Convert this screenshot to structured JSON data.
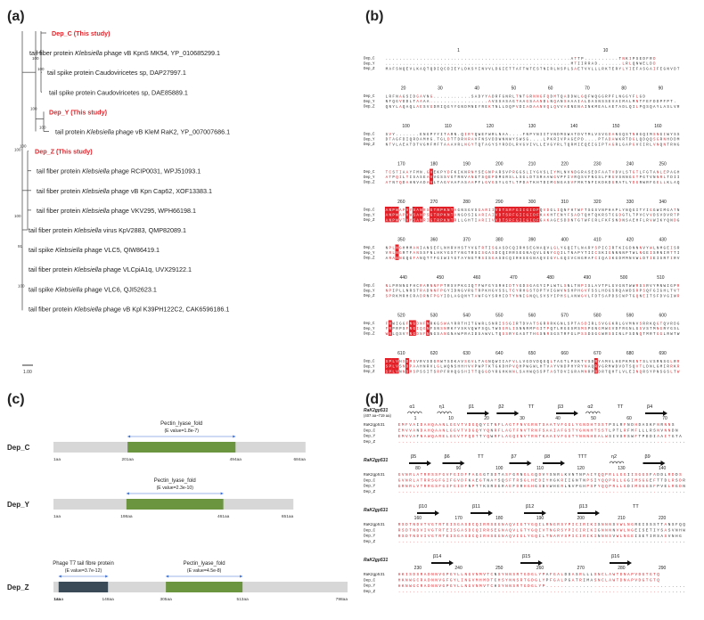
{
  "panels": {
    "a": "(a)",
    "b": "(b)",
    "c": "(c)",
    "d": "(d)"
  },
  "tree": {
    "leaves": [
      {
        "pre": "Dep_C (This study)",
        "ital": "",
        "post": "",
        "red": true
      },
      {
        "pre": "tail fiber protein ",
        "ital": "Klebsiella",
        "post": " phage vB KpnS MK54, YP_010685299.1",
        "red": false
      },
      {
        "pre": "tail spike protein Caudoviricetes sp, DAP27997.1",
        "ital": "",
        "post": "",
        "red": false
      },
      {
        "pre": "tail spike protein Caudoviricetes sp, DAE85889.1",
        "ital": "",
        "post": "",
        "red": false
      },
      {
        "pre": "Dep_Y (This study)",
        "ital": "",
        "post": "",
        "red": true
      },
      {
        "pre": "tail protein ",
        "ital": "Klebsiella",
        "post": " phage vB KleM RaK2, YP_007007686.1",
        "red": false
      },
      {
        "pre": "Dep_Z (This study)",
        "ital": "",
        "post": "",
        "red": true
      },
      {
        "pre": "tail fiber protein ",
        "ital": "Klebsiella",
        "post": " phage RCIP0031, WPJ51093.1",
        "red": false
      },
      {
        "pre": "tail fiber protein ",
        "ital": "Klebsiella",
        "post": " phage vB Kpn Cap62, XOF13383.1",
        "red": false
      },
      {
        "pre": "tail fiber protein ",
        "ital": "Klebsiella",
        "post": " phage VKV295, WPH66198.1",
        "red": false
      },
      {
        "pre": "tail fiber protein ",
        "ital": "Klebsiella",
        "post": " virus KpV2883, QMP82089.1",
        "red": false
      },
      {
        "pre": "tail spike ",
        "ital": "Klebsiella",
        "post": " phage VLC5, QIW86419.1",
        "red": false
      },
      {
        "pre": "tail fiber protein ",
        "ital": "Klebsiella",
        "post": " phage VLCpiA1q, UVX29122.1",
        "red": false
      },
      {
        "pre": "tail spike ",
        "ital": "Klebsiella",
        "post": " phage VLC6, QJI52623.1",
        "red": false
      },
      {
        "pre": "tail fiber protein ",
        "ital": "Klebsiella",
        "post": " phage vB Kpl K39PH122C2, CAK6596186.1",
        "red": false
      }
    ],
    "bootstrap": [
      "100",
      "100",
      "100",
      "100",
      "100",
      "100",
      "91",
      "100",
      "100"
    ],
    "scale_label": "1.00"
  },
  "alignment_b": {
    "seq_names": [
      "Dep_C",
      "Dep_Y",
      "Dep_Z"
    ],
    "rows": [
      {
        "ticks": [
          "1",
          "10"
        ],
        "seqs": [
          "......................................................ATTP..........TNKIPSEDFRD",
          "......................................................MTIIRRAD.......LRLQNWELDD",
          "MAFSNQEVLKAQTQDIQCDIEYLDKSYINVVLDGIETTAFTWTESTNIRLNSPLSAETVVLLLRKTERYLYIEFASGAIFEGNVDT"
        ]
      },
      {
        "ticks": [
          "20",
          "30",
          "40",
          "50",
          "60",
          "70",
          "80",
          "90"
        ],
        "seqs": [
          "LRFNAGSIDGAVNG...........SADYYADRFGNRLTNTGRNNGFQDMTQADDWLGQFWQGGRPFLNGGYFLGD",
          "NFQGVDDLTAAAA.................AVSSASAGTAAGSAANDLNQANSAAAIALDASNSSEVAIMALMNTFEFDDPFPT.",
          "QNYLAQAQLAESVGDRIQGYYGNDMNEYREKTNLLDQPVDIADAANVQLQVVAENENAINKMEALAETADLQILPQSQAYLASLVRNH"
        ]
      },
      {
        "ticks": [
          "100",
          "110",
          "120",
          "130",
          "140",
          "150",
          "160"
        ],
        "seqs": [
          "SVY.......ENGPYYITARN.QIRYQWEFWRLNAA....FNPYNIITVNDMSWATDVTMLVSVGDANGQSTNHGQIMSNGIWYSSGTIALA",
          "DTAGFDIQRDAMHG.TGLDTTDRNRAVFNSVDDWNNWYSWSG....LPKRIVPAGEPD....PTADAWKRTDGLQDQQSGRNHDDMFYGGTFR",
          "NTVLAEATDTVGMFMFTAAAVRLNGYTQTAGYSYRDDLRVGVIVLLEVGYRLTQRMIEQEIGIPTAGRLGAPGVCIRLVNQNTRNGQIRHLAS"
        ]
      },
      {
        "ticks": [
          "170",
          "180",
          "190",
          "200",
          "210",
          "220",
          "230",
          "240",
          "250"
        ],
        "seqs": [
          "TCSTIAAYFMN.GVEKPYDFKIKNRNYSEGNPARSVPRGGSLIYGVSLIYMLNVNDGRASEDFAATVDVLSTGTLFGTANLEPAGHWLLSI",
          "ATPQILTISASEAVVGSSVGTRNVANGTSQEPDMGRSLLSGLDTSRAAWGVPFIVRQSVFNGSLFRGVSNNGGTPGTVNNRLTDIISVLLNG",
          "ATNTQDAHNVADAVLTAGVAAFASAAPFLGVGSYLGTLTPDATKHTDIMGNGASVFMKTNFIKDKDGRATLYDGRWRFGELLKLAQAIRS"
        ]
      },
      {
        "ticks": [
          "260",
          "270",
          "280",
          "290",
          "300",
          "310",
          "320",
          "330",
          "340"
        ],
        "seqs": [
          "ANPWAPVYSANRSGTRPKNTAGNSGVSGARIIVDTSRFGIIGIDFQVDGLIQNFHTWFTSGSVNPHAPLYNQGITYIGGWIMGATNHAGANI",
          "ANPWAPVWSANPSGTRPKNTANGDSIGARIAIVDTSRFGIIGIDFKAKHTENYFSADTQHTQKRSTCGDGTLTPVCVVDSVDVRTPYAKNAT",
          "ANPWVTVYSANRIGTRPKNTRLLGHTIARIIVVDTSRFGIIGIDFGAKAGESDDNTGTWFCRLFKFSNDNSAEHFLRVWIKYQNDGDLSAIT"
        ]
      },
      {
        "ticks": [
          "350",
          "360",
          "370",
          "380",
          "390",
          "400",
          "410",
          "420",
          "430"
        ],
        "seqs": [
          "NPLNGHMMANIANSEFLNHRVHSTYVGTRTISGASDCQIRHSEGNAQVLGLYGQITLNARYSPICIRTKIGDNNNVYWLNMGEISRTIRIAISNE",
          "VRLNGRTFANSSFNLHKYGSTYNGTRSISGASDCQIRRSEGNAQVLGNYGQILTNAPYTIICSKIGNNNNPTWLNGEISRNIRTTIHGSN",
          "ARANNGQGFANQTTFGIWIYGTAYNGTRSISGASDCQIRHSEGNAQVIGYLGQIVCNGRAFCIQAIKGDMMNVWLDTIEISRTIRVAISDRT"
        ]
      },
      {
        "ticks": [
          "440",
          "450",
          "460",
          "470",
          "480",
          "490",
          "500",
          "510"
        ],
        "seqs": [
          "NLPRNNGFHCRARNNFPTRSVPKGIQTFWFGYSRHIDTYGDSGAGYIPLWTLSNLTNPISLAVTPLGVGNTWWRSSRVYMNWIGPRLSY",
          "NPIPLLNRSTRADNNFPGYIDNGVRGTRPKHGVSSLTCYRHGSTDPTVIGWVNSHPHGVFSSLHDGSRQAWDSRPSQFGIGHLTVTRMPDQQ",
          "SPRKMRHCRADRNFPGYIDLAGQNYTAWFGYSRHIDTYNNIGNQLSVSYIPHSLANWGVLFDTSAPDSCWPTGQNEITSFDVGIWRKTHDNL"
        ]
      },
      {
        "ticks": [
          "520",
          "530",
          "540",
          "550",
          "560",
          "570",
          "580",
          "590",
          "600"
        ],
        "seqs": [
          "FRWIGGFNGDNFNRKGSWAYRRTHITGWRLSNRISSGIRTDVATSGRRRKGNLSPTASDIRLSVGGKRLGVMNVSRRKQGTQVRDGNTLTQS",
          "FRPRPSFNGIQGNFSNSNRKYVSKVQWFSQLTWSGRLISNNRMPGITPQTLRGGSMSMSPGNGMWGVDFRGNLGSVSTMNGRYGSLIGKPTG",
          "WRLQSVYNGDNFNNGSANGNAWPRAIDSAWVLTQSSRYGASTTHGSNRSGSTRFGLPSSDSGGWRSSINLFSDNQTMRTGGLRWTWFGLSG"
        ]
      },
      {
        "ticks": [
          "610",
          "620",
          "630",
          "640",
          "650",
          "660",
          "670",
          "680",
          "690"
        ],
        "seqs": [
          "SPLVHSDMSVRVSDGRWTSDKAVSGVLTAGNQWIIAFVLLVGDVDQGQLTAGTLPSKTVSDRYAMVLHEPKMGNTSLVSRNSGLRRTYIL",
          "SPLVSNDPAAHNRVLGLWQNSHHHVVPWPTKTGKDHPVQHPWGWLHTVAYVNDPHYRYNAQRVGRMWDVDTSQVTLDNLGMIRRKRVLIKPA",
          "SPLVNNDMSPSSITSRPFRHQGSHITTQGGDYRGHKNNLSAHWQSSPTASTDVIGRAMNRPRDRTQHTLVLEINQRSYPNSGSLTWGNTVTPQ"
        ]
      }
    ]
  },
  "domains_c": {
    "rows": [
      {
        "name": "Dep_C",
        "total": "684aa",
        "domains": [
          {
            "label": "Pectin_lyase_fold",
            "evalue": "(E value=1.8e-7)",
            "start": 201,
            "end": 494,
            "start_label": "201aa",
            "end_label": "494aa",
            "color": "#6c9540"
          }
        ],
        "length": 684
      },
      {
        "name": "Dep_Y",
        "total": "651aa",
        "domains": [
          {
            "label": "Pectin_lyase_fold",
            "evalue": "(E value=2.3e-10)",
            "start": 198,
            "end": 461,
            "start_label": "198aa",
            "end_label": "461aa",
            "color": "#6c9540"
          }
        ],
        "length": 651
      },
      {
        "name": "Dep_Z",
        "total": "798aa",
        "domains": [
          {
            "label": "Phage T7 tail fibre protein",
            "evalue": "(E value=3.7e-12)",
            "start": 14,
            "end": 148,
            "start_label": "14aa",
            "end_label": "148aa",
            "color": "#3a4a57"
          },
          {
            "label": "Pectin_lyase_fold",
            "evalue": "(E value=4.5e-8)",
            "start": 305,
            "end": 513,
            "start_label": "305aa",
            "end_label": "513aa",
            "color": "#6c9540"
          }
        ],
        "length": 798
      }
    ],
    "start_label": "1aa"
  },
  "alignment_d": {
    "seq_names": [
      "RaK2gp531",
      "Dep_C",
      "Dep_Y",
      "Dep_Z"
    ],
    "ref_label": "RaK2gp531",
    "ref_note": "(407 aa~719 aa)",
    "blocks": [
      {
        "ss": [
          "α1",
          "η1",
          "β1",
          "β2",
          "TT",
          "β3",
          "α2",
          "TT",
          "β4"
        ],
        "ticks": [
          "1",
          "10",
          "20",
          "30",
          "40",
          "50",
          "60",
          "70"
        ],
        "seqs": [
          "EMFVAIDAHQAANLGGVTVDGQQYITNFLAGTFNVGRNTSAATVFGGLYGNDHTSSTPSLRFNDHDASKFNRNNS",
          "EMVVANDAHQAANLGGVTVDGQYYQNRFLAGTFNVTRNFSAAIAFGSTYGNNHTSSTLPTLRFMFLLLRSNVNNDN",
          "EMVVAFNAWQARELGGVTFQDTTYQWRFLAGQINVTRNTKAAIVFGGTYNNNHEALWSIVSRSWFTPDDIAAITGTA",
          "..............................................................................."
        ]
      },
      {
        "ss": [
          "β5",
          "β6",
          "TT",
          "β7",
          "β8",
          "TTT",
          "η2",
          "β9"
        ],
        "ticks": [
          "80",
          "90",
          "100",
          "110",
          "120",
          "130",
          "140"
        ],
        "seqs": [
          "GVNRLATRRSSFGVFGIDFFAGGGTSDTASFGRNGLGQDVYSNRLKVNTNPAIYQQPRLLGGIISGGSFADDLRDDS",
          "GVNRLATRRSGFGIFGVDFKAEGTNAYSQSFTRSGLHEDIYHGKRIIGNTNPSIYQQPRLLGGIMSGGEFTTDLRSDR",
          "GRNRLVTRRGSFGIFGIDFNPTTKSRDGRAEFDRHGHGSDVWHERLNVPGHPSFYQQPRLLGDIMSGGSFPVELRGDN",
          "..............................................................................."
        ]
      },
      {
        "ss": [
          "β10",
          "β11",
          "β12",
          "β13",
          "TT"
        ],
        "ticks": [
          "160",
          "170",
          "180",
          "190",
          "200",
          "210",
          "220"
        ],
        "seqs": [
          "RSDTNDVTVGTRTEISGASDCQIRRSEGNAQVIGTYGQILRNGRSYPICIRIKISNNNSVWLNGREISSSTTANSFQQ",
          "RSDTNDVIVGTRTEISGASDCQIRRSEGNAQVLGTYGQIVTNGRSYPICIRIKIGNNNNVWLNGEISETIYSASVNHW",
          "RSDTNDVIVGTRTEISGASDCQIRHSEGNAQVIGLYGQILTNARYSPICIRIKINNNSVWLNGEISETIRSASVNHG",
          "..............................................................................."
        ]
      },
      {
        "ss": [
          "β14",
          "β15",
          "β16"
        ],
        "ticks": [
          "230",
          "240",
          "250",
          "260",
          "270",
          "280",
          "290"
        ],
        "seqs": [
          "HKISDSRADNNVGPGYLLNGVNMVTCNSYNNSRTGDGLYPAFGALDSASRLLLSNCLAWTDNAPVDGTGTQ",
          "HKNWGCRADNNVGFGYLINGVMHMDTCHSYNNSRTGDGLYPFGALPGATRIMASNCLAWTDNAPVDGTGTQ",
          "HKNWGCRADNNVGPGYLLNGVNMVTCHSYNNSRTGDGLYP.......................................",
          "..............................................................................."
        ]
      }
    ]
  }
}
